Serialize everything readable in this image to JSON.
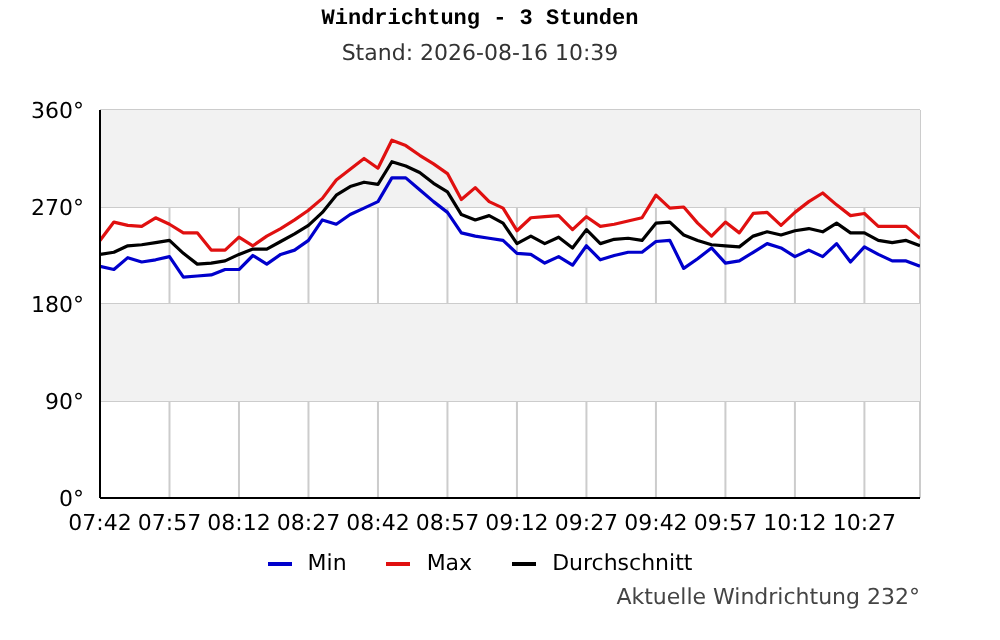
{
  "chart_data": {
    "type": "line",
    "title": "Windrichtung - 3 Stunden",
    "subtitle": "Stand: 2026-08-16 10:39",
    "annotations": [
      "Aktuelle Windrichtung 232°"
    ],
    "x": [
      7.7,
      7.75,
      7.8,
      7.85,
      7.9,
      7.95,
      8.0,
      8.05,
      8.1,
      8.15,
      8.2,
      8.25,
      8.3,
      8.35,
      8.4,
      8.45,
      8.5,
      8.55,
      8.6,
      8.65,
      8.7,
      8.75,
      8.8,
      8.85,
      8.9,
      8.95,
      9.0,
      9.05,
      9.1,
      9.15,
      9.2,
      9.25,
      9.3,
      9.35,
      9.4,
      9.45,
      9.5,
      9.55,
      9.6,
      9.65,
      9.7,
      9.75,
      9.8,
      9.85,
      9.9,
      9.95,
      10.0,
      10.05,
      10.1,
      10.15,
      10.2,
      10.25,
      10.3,
      10.35,
      10.4,
      10.45,
      10.5,
      10.55,
      10.6,
      10.65
    ],
    "series": [
      {
        "name": "Min",
        "color": "#0000cc",
        "values": [
          215,
          212,
          223,
          219,
          221,
          224,
          205,
          206,
          207,
          212,
          212,
          225,
          217,
          226,
          230,
          239,
          258,
          254,
          263,
          269,
          275,
          297,
          297,
          286,
          275,
          265,
          246,
          243,
          241,
          239,
          227,
          226,
          218,
          224,
          216,
          234,
          221,
          225,
          228,
          228,
          238,
          239,
          213,
          222,
          232,
          218,
          220,
          228,
          236,
          232,
          224,
          230,
          224,
          236,
          219,
          233,
          226,
          220,
          220,
          215
        ]
      },
      {
        "name": "Max",
        "color": "#e01010",
        "values": [
          239,
          256,
          253,
          252,
          260,
          254,
          246,
          246,
          230,
          230,
          242,
          234,
          243,
          250,
          258,
          267,
          278,
          295,
          305,
          315,
          306,
          332,
          327,
          318,
          310,
          301,
          277,
          288,
          275,
          269,
          248,
          260,
          261,
          262,
          249,
          261,
          252,
          254,
          257,
          260,
          281,
          269,
          270,
          255,
          243,
          256,
          246,
          264,
          265,
          253,
          265,
          275,
          283,
          272,
          262,
          264,
          252,
          252,
          252,
          241
        ]
      },
      {
        "name": "Durchschnitt",
        "color": "#000000",
        "values": [
          226,
          228,
          234,
          235,
          237,
          239,
          227,
          217,
          218,
          220,
          226,
          231,
          231,
          238,
          245,
          253,
          265,
          281,
          289,
          293,
          291,
          312,
          308,
          302,
          292,
          284,
          263,
          258,
          262,
          255,
          236,
          243,
          236,
          242,
          232,
          249,
          236,
          240,
          241,
          239,
          255,
          256,
          244,
          239,
          235,
          234,
          233,
          243,
          247,
          244,
          248,
          250,
          247,
          255,
          246,
          246,
          239,
          237,
          239,
          234
        ]
      }
    ],
    "xlim": [
      7.7,
      10.65
    ],
    "xticks": [
      {
        "value": 7.7,
        "label": "07:42"
      },
      {
        "value": 7.95,
        "label": "07:57"
      },
      {
        "value": 8.2,
        "label": "08:12"
      },
      {
        "value": 8.45,
        "label": "08:27"
      },
      {
        "value": 8.7,
        "label": "08:42"
      },
      {
        "value": 8.95,
        "label": "08:57"
      },
      {
        "value": 9.2,
        "label": "09:12"
      },
      {
        "value": 9.45,
        "label": "09:27"
      },
      {
        "value": 9.7,
        "label": "09:42"
      },
      {
        "value": 9.95,
        "label": "09:57"
      },
      {
        "value": 10.2,
        "label": "10:12"
      },
      {
        "value": 10.45,
        "label": "10:27"
      }
    ],
    "ylim": [
      0,
      360
    ],
    "yticks": [
      {
        "value": 0,
        "label": "0°"
      },
      {
        "value": 90,
        "label": "90°"
      },
      {
        "value": 180,
        "label": "180°"
      },
      {
        "value": 270,
        "label": "270°"
      },
      {
        "value": 360,
        "label": "360°"
      }
    ],
    "bands": [
      {
        "axis": "y",
        "from": 90,
        "to": 180,
        "color": "#f2f2f2"
      },
      {
        "axis": "y",
        "from": 270,
        "to": 360,
        "color": "#f2f2f2"
      }
    ],
    "grid": true,
    "legend": "bottom"
  }
}
